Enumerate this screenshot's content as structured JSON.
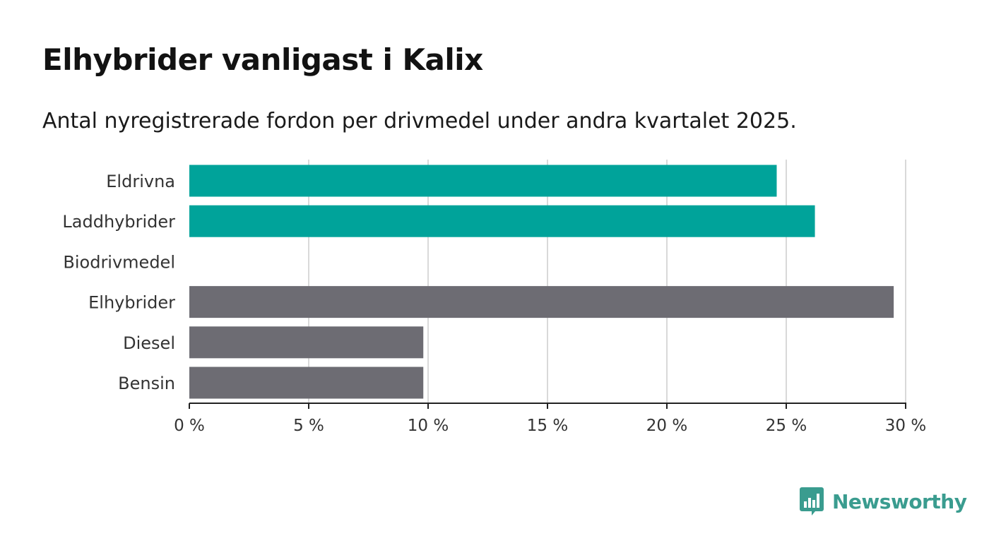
{
  "title": "Elhybrider vanligast i Kalix",
  "subtitle": "Antal nyregistrerade fordon per drivmedel under andra kvartalet 2025.",
  "colors": {
    "highlight": "#00a39a",
    "default": "#6d6c73",
    "grid": "#d9d9d9",
    "axis": "#222222",
    "logo": "#3a9c8f"
  },
  "logo": {
    "text": "Newsworthy",
    "icon": "bar-chart-speech-bubble-icon"
  },
  "chart_data": {
    "type": "bar",
    "orientation": "horizontal",
    "categories": [
      "Eldrivna",
      "Laddhybrider",
      "Biodrivmedel",
      "Elhybrider",
      "Diesel",
      "Bensin"
    ],
    "values": [
      24.6,
      26.2,
      0,
      29.5,
      9.8,
      9.8
    ],
    "highlighted": [
      true,
      true,
      false,
      false,
      false,
      false
    ],
    "unit": "%",
    "xlim": [
      0,
      30
    ],
    "x_ticks": [
      "0 %",
      "5 %",
      "10 %",
      "15 %",
      "20 %",
      "25 %",
      "30 %"
    ],
    "x_tick_values": [
      0,
      5,
      10,
      15,
      20,
      25,
      30
    ],
    "grid": true,
    "legend": "none"
  }
}
